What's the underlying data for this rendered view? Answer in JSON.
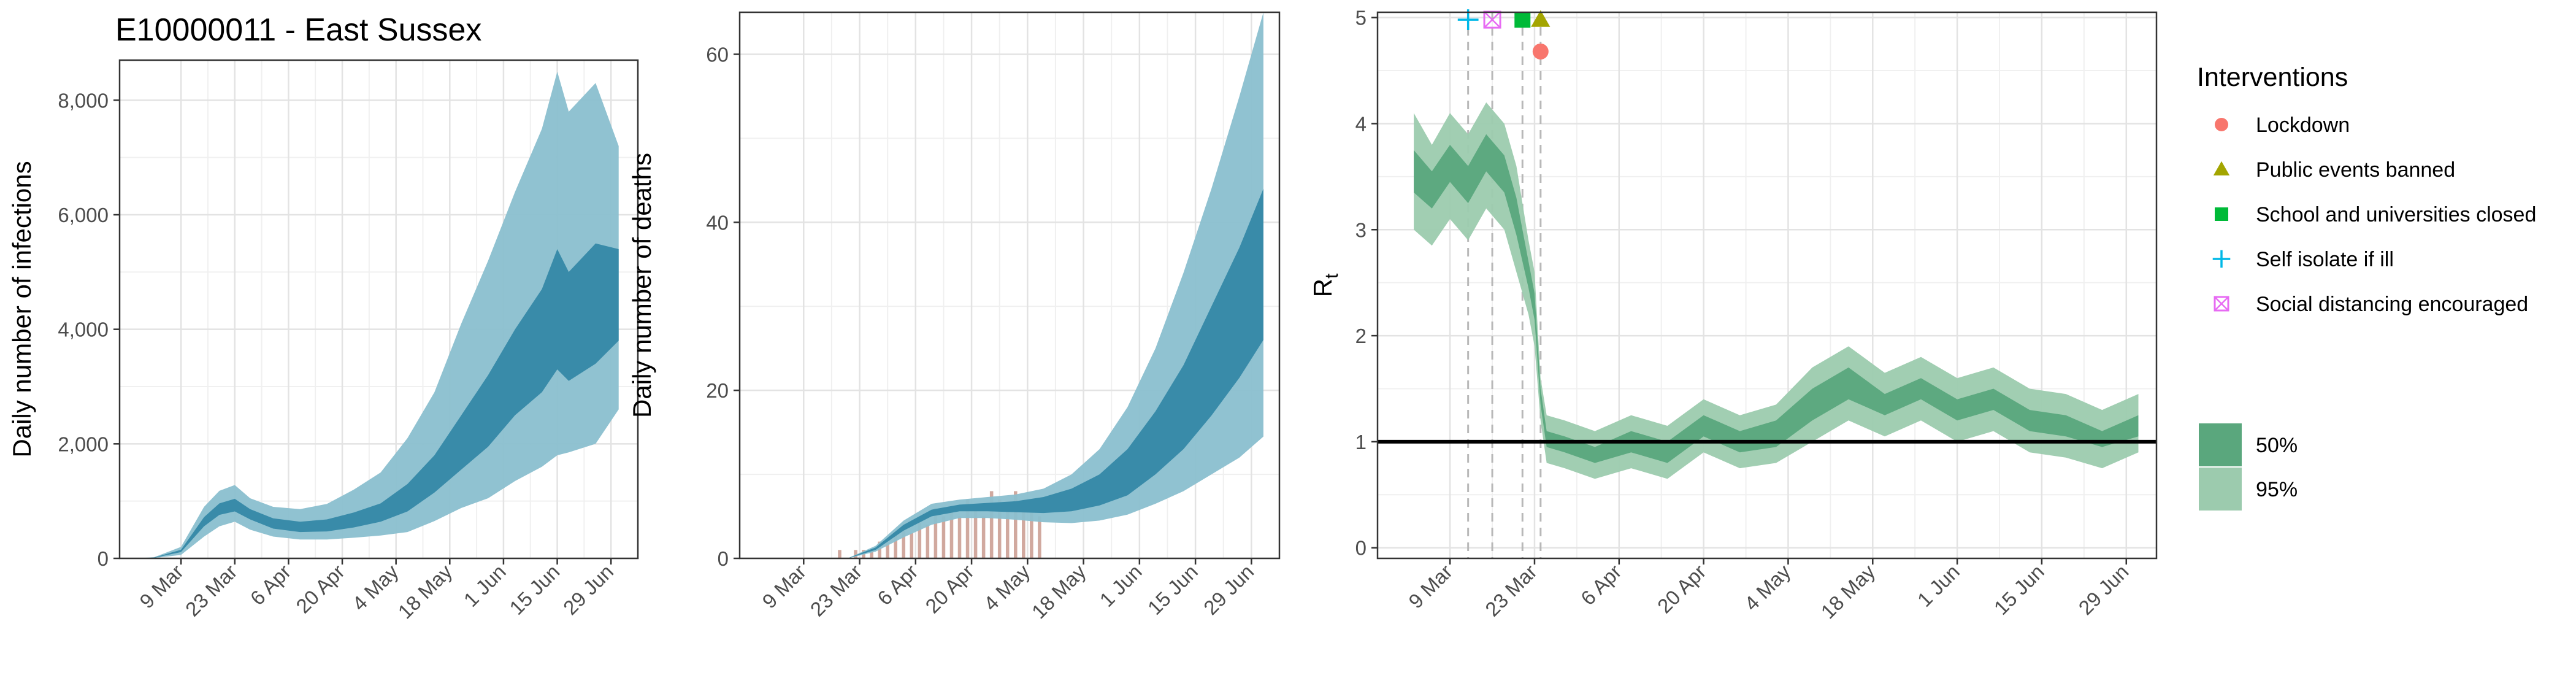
{
  "chart_data": [
    {
      "type": "area",
      "title": "E10000011 - East Sussex",
      "ylabel": "Daily number of infections",
      "xlabel": "",
      "xlim": [
        "2020-02-22",
        "2020-07-06"
      ],
      "ylim": [
        0,
        8700
      ],
      "y_ticks": [
        0,
        2000,
        4000,
        6000,
        8000
      ],
      "y_tick_labels": [
        "0",
        "2,000",
        "4,000",
        "6,000",
        "8,000"
      ],
      "x_tick_labels": [
        "9 Mar",
        "23 Mar",
        "6 Apr",
        "20 Apr",
        "4 May",
        "18 May",
        "1 Jun",
        "15 Jun",
        "29 Jun"
      ],
      "x_tick_dates": [
        "2020-03-09",
        "2020-03-23",
        "2020-04-06",
        "2020-04-20",
        "2020-05-04",
        "2020-05-18",
        "2020-06-01",
        "2020-06-15",
        "2020-06-29"
      ],
      "grid": true,
      "bands": [
        {
          "name": "95%",
          "color": "#8abfcf",
          "x": [
            "2020-02-26",
            "2020-03-02",
            "2020-03-09",
            "2020-03-15",
            "2020-03-19",
            "2020-03-23",
            "2020-03-27",
            "2020-04-02",
            "2020-04-09",
            "2020-04-16",
            "2020-04-23",
            "2020-04-30",
            "2020-05-07",
            "2020-05-14",
            "2020-05-21",
            "2020-05-28",
            "2020-06-04",
            "2020-06-11",
            "2020-06-15",
            "2020-06-18",
            "2020-06-25",
            "2020-07-01"
          ],
          "lower": [
            0,
            5,
            60,
            380,
            560,
            640,
            500,
            380,
            330,
            330,
            360,
            400,
            460,
            650,
            880,
            1050,
            1350,
            1600,
            1800,
            1850,
            2000,
            2600
          ],
          "upper": [
            0,
            20,
            200,
            900,
            1180,
            1280,
            1050,
            900,
            860,
            950,
            1200,
            1500,
            2100,
            2900,
            4100,
            5200,
            6400,
            7500,
            8500,
            7800,
            8300,
            7200
          ]
        },
        {
          "name": "50%",
          "color": "#3588a6",
          "x": [
            "2020-02-26",
            "2020-03-02",
            "2020-03-09",
            "2020-03-15",
            "2020-03-19",
            "2020-03-23",
            "2020-03-27",
            "2020-04-02",
            "2020-04-09",
            "2020-04-16",
            "2020-04-23",
            "2020-04-30",
            "2020-05-07",
            "2020-05-14",
            "2020-05-21",
            "2020-05-28",
            "2020-06-04",
            "2020-06-11",
            "2020-06-15",
            "2020-06-18",
            "2020-06-25",
            "2020-07-01"
          ],
          "lower": [
            0,
            10,
            110,
            560,
            760,
            820,
            680,
            520,
            460,
            470,
            540,
            640,
            820,
            1150,
            1550,
            1950,
            2500,
            2900,
            3300,
            3100,
            3400,
            3800
          ],
          "upper": [
            0,
            15,
            150,
            720,
            960,
            1040,
            860,
            700,
            640,
            680,
            800,
            960,
            1300,
            1800,
            2500,
            3200,
            4000,
            4700,
            5400,
            5000,
            5500,
            5400
          ]
        }
      ]
    },
    {
      "type": "bar",
      "title": "",
      "ylabel": "Daily number of deaths",
      "xlabel": "",
      "xlim": [
        "2020-02-22",
        "2020-07-06"
      ],
      "ylim": [
        0,
        65
      ],
      "y_ticks": [
        0,
        20,
        40,
        60
      ],
      "y_tick_labels": [
        "0",
        "20",
        "40",
        "60"
      ],
      "x_tick_labels": [
        "9 Mar",
        "23 Mar",
        "6 Apr",
        "20 Apr",
        "4 May",
        "18 May",
        "1 Jun",
        "15 Jun",
        "29 Jun"
      ],
      "x_tick_dates": [
        "2020-03-09",
        "2020-03-23",
        "2020-04-06",
        "2020-04-20",
        "2020-05-04",
        "2020-05-18",
        "2020-06-01",
        "2020-06-15",
        "2020-06-29"
      ],
      "grid": true,
      "bar_color": "#c99a8e",
      "bars": {
        "dates": [
          "2020-03-18",
          "2020-03-22",
          "2020-03-24",
          "2020-03-26",
          "2020-03-28",
          "2020-03-30",
          "2020-04-01",
          "2020-04-03",
          "2020-04-05",
          "2020-04-07",
          "2020-04-09",
          "2020-04-11",
          "2020-04-13",
          "2020-04-15",
          "2020-04-17",
          "2020-04-19",
          "2020-04-21",
          "2020-04-23",
          "2020-04-25",
          "2020-04-27",
          "2020-04-29",
          "2020-05-01",
          "2020-05-03",
          "2020-05-05",
          "2020-05-07"
        ],
        "values": [
          1,
          1,
          1,
          1,
          2,
          2,
          3,
          4,
          3,
          5,
          4,
          6,
          5,
          6,
          5,
          7,
          6,
          5,
          8,
          7,
          6,
          8,
          7,
          6,
          5
        ]
      },
      "bands": [
        {
          "name": "95%",
          "color": "#8abfcf",
          "x": [
            "2020-03-20",
            "2020-03-27",
            "2020-04-03",
            "2020-04-10",
            "2020-04-17",
            "2020-04-24",
            "2020-05-01",
            "2020-05-08",
            "2020-05-15",
            "2020-05-22",
            "2020-05-29",
            "2020-06-05",
            "2020-06-12",
            "2020-06-19",
            "2020-06-26",
            "2020-07-02"
          ],
          "lower": [
            0,
            0.8,
            2.5,
            4,
            4.8,
            4.8,
            4.6,
            4.3,
            4.2,
            4.5,
            5.2,
            6.5,
            8,
            10,
            12,
            14.5
          ],
          "upper": [
            0,
            1.5,
            4.5,
            6.5,
            7,
            7.3,
            7.6,
            8.3,
            10,
            13,
            18,
            25,
            34,
            44,
            55,
            65
          ]
        },
        {
          "name": "50%",
          "color": "#3588a6",
          "x": [
            "2020-03-20",
            "2020-03-27",
            "2020-04-03",
            "2020-04-10",
            "2020-04-17",
            "2020-04-24",
            "2020-05-01",
            "2020-05-08",
            "2020-05-15",
            "2020-05-22",
            "2020-05-29",
            "2020-06-05",
            "2020-06-12",
            "2020-06-19",
            "2020-06-26",
            "2020-07-02"
          ],
          "lower": [
            0,
            1.0,
            3.3,
            5,
            5.6,
            5.6,
            5.5,
            5.4,
            5.6,
            6.3,
            7.5,
            10,
            13,
            17,
            21.5,
            26
          ],
          "upper": [
            0,
            1.3,
            4,
            5.8,
            6.4,
            6.6,
            6.8,
            7.3,
            8.3,
            10,
            13,
            17.5,
            23,
            30,
            37,
            44
          ]
        }
      ]
    },
    {
      "type": "line",
      "title": "",
      "ylabel_main": "R",
      "ylabel_sub": "t",
      "xlabel": "",
      "xlim": [
        "2020-02-26",
        "2020-07-04"
      ],
      "ylim": [
        -0.1,
        5.05
      ],
      "y_ticks": [
        0,
        1,
        2,
        3,
        4,
        5
      ],
      "y_tick_labels": [
        "0",
        "1",
        "2",
        "3",
        "4",
        "5"
      ],
      "x_tick_labels": [
        "9 Mar",
        "23 Mar",
        "6 Apr",
        "20 Apr",
        "4 May",
        "18 May",
        "1 Jun",
        "15 Jun",
        "29 Jun"
      ],
      "x_tick_dates": [
        "2020-03-09",
        "2020-03-23",
        "2020-04-06",
        "2020-04-20",
        "2020-05-04",
        "2020-05-18",
        "2020-06-01",
        "2020-06-15",
        "2020-06-29"
      ],
      "grid": true,
      "reference_line": 1,
      "bands": [
        {
          "name": "95%",
          "color": "#9ccbae",
          "x": [
            "2020-03-03",
            "2020-03-06",
            "2020-03-09",
            "2020-03-12",
            "2020-03-15",
            "2020-03-18",
            "2020-03-20",
            "2020-03-22",
            "2020-03-23",
            "2020-03-24",
            "2020-03-25",
            "2020-03-28",
            "2020-04-02",
            "2020-04-08",
            "2020-04-14",
            "2020-04-20",
            "2020-04-26",
            "2020-05-02",
            "2020-05-08",
            "2020-05-14",
            "2020-05-20",
            "2020-05-26",
            "2020-06-01",
            "2020-06-07",
            "2020-06-13",
            "2020-06-19",
            "2020-06-25",
            "2020-07-01"
          ],
          "lower": [
            3.0,
            2.85,
            3.1,
            2.9,
            3.2,
            3.0,
            2.6,
            2.2,
            1.9,
            1.2,
            0.8,
            0.75,
            0.65,
            0.75,
            0.65,
            0.9,
            0.75,
            0.8,
            1.0,
            1.2,
            1.05,
            1.2,
            1.0,
            1.1,
            0.9,
            0.85,
            0.75,
            0.9
          ],
          "upper": [
            4.1,
            3.8,
            4.1,
            3.9,
            4.2,
            4.0,
            3.6,
            2.9,
            2.6,
            1.6,
            1.25,
            1.2,
            1.1,
            1.25,
            1.15,
            1.4,
            1.25,
            1.35,
            1.7,
            1.9,
            1.65,
            1.8,
            1.6,
            1.7,
            1.5,
            1.45,
            1.3,
            1.45
          ]
        },
        {
          "name": "50%",
          "color": "#5aa77d",
          "x": [
            "2020-03-03",
            "2020-03-06",
            "2020-03-09",
            "2020-03-12",
            "2020-03-15",
            "2020-03-18",
            "2020-03-20",
            "2020-03-22",
            "2020-03-23",
            "2020-03-24",
            "2020-03-25",
            "2020-03-28",
            "2020-04-02",
            "2020-04-08",
            "2020-04-14",
            "2020-04-20",
            "2020-04-26",
            "2020-05-02",
            "2020-05-08",
            "2020-05-14",
            "2020-05-20",
            "2020-05-26",
            "2020-06-01",
            "2020-06-07",
            "2020-06-13",
            "2020-06-19",
            "2020-06-25",
            "2020-07-01"
          ],
          "lower": [
            3.35,
            3.2,
            3.45,
            3.25,
            3.55,
            3.35,
            2.95,
            2.45,
            2.15,
            1.35,
            0.95,
            0.9,
            0.8,
            0.9,
            0.8,
            1.05,
            0.9,
            0.95,
            1.2,
            1.4,
            1.25,
            1.4,
            1.2,
            1.3,
            1.1,
            1.05,
            0.95,
            1.05
          ],
          "upper": [
            3.75,
            3.55,
            3.8,
            3.6,
            3.9,
            3.7,
            3.3,
            2.7,
            2.4,
            1.5,
            1.1,
            1.05,
            0.95,
            1.1,
            1.0,
            1.25,
            1.1,
            1.2,
            1.5,
            1.7,
            1.45,
            1.6,
            1.4,
            1.5,
            1.3,
            1.25,
            1.1,
            1.25
          ]
        }
      ],
      "interventions": [
        {
          "name": "Self isolate if ill",
          "date": "2020-03-12",
          "y": 4.98,
          "shape": "plus",
          "color": "#00b8e7"
        },
        {
          "name": "Social distancing encouraged",
          "date": "2020-03-16",
          "y": 4.98,
          "shape": "boxx",
          "color": "#e76bf3"
        },
        {
          "name": "School and universities closed",
          "date": "2020-03-21",
          "y": 4.98,
          "shape": "square",
          "color": "#00ba38"
        },
        {
          "name": "Public events banned",
          "date": "2020-03-24",
          "y": 4.98,
          "shape": "triangle",
          "color": "#a3a500"
        },
        {
          "name": "Lockdown",
          "date": "2020-03-24",
          "y": 4.68,
          "shape": "circle",
          "color": "#f8766d"
        }
      ]
    }
  ],
  "legend": {
    "interventions_title": "Interventions",
    "interventions": [
      {
        "label": "Lockdown",
        "shape": "circle",
        "color": "#f8766d"
      },
      {
        "label": "Public events banned",
        "shape": "triangle",
        "color": "#a3a500"
      },
      {
        "label": "School and universities closed",
        "shape": "square",
        "color": "#00ba38"
      },
      {
        "label": "Self isolate if ill",
        "shape": "plus",
        "color": "#00b8e7"
      },
      {
        "label": "Social distancing encouraged",
        "shape": "boxx",
        "color": "#e76bf3"
      }
    ],
    "ci": [
      {
        "label": "50%",
        "color": "#5aa77d"
      },
      {
        "label": "95%",
        "color": "#9ccbae"
      }
    ]
  }
}
